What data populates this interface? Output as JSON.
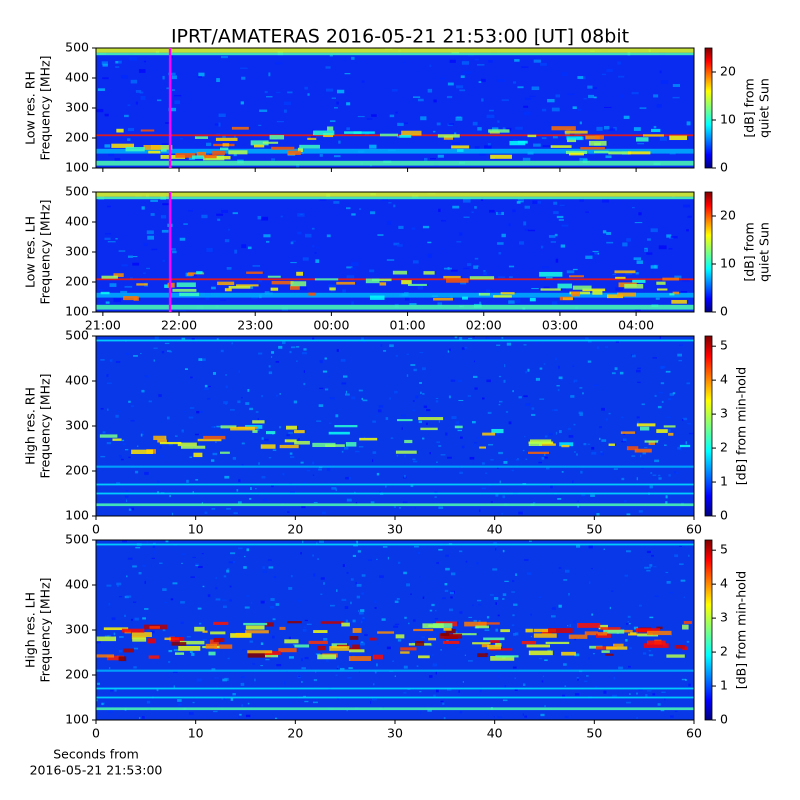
{
  "chart_data": [
    {
      "type": "heatmap",
      "title": "IPRT/AMATERAS 2016-05-21 21:53:00 [UT]   08bit",
      "ylabel": [
        "Low res. RH",
        "Frequency [MHz]"
      ],
      "ylim": [
        100,
        500
      ],
      "yticks": [
        100,
        200,
        300,
        400,
        500
      ],
      "xlim": [
        20.91,
        28.76
      ],
      "xticks": [
        21,
        22,
        23,
        24,
        25,
        26,
        27,
        28
      ],
      "marker_x": 21.883,
      "marker_color": "#ff00ff",
      "colorbar": {
        "label": [
          "[dB] from",
          "quiet Sun"
        ],
        "lim": [
          0,
          25
        ],
        "ticks": [
          0,
          10,
          20
        ]
      }
    },
    {
      "type": "heatmap",
      "ylabel": [
        "Low res. LH",
        "Frequency [MHz]"
      ],
      "ylim": [
        100,
        500
      ],
      "yticks": [
        100,
        200,
        300,
        400,
        500
      ],
      "xlim": [
        20.91,
        28.76
      ],
      "xticks": [
        {
          "value": 21,
          "label": "21:00"
        },
        {
          "value": 22,
          "label": "22:00"
        },
        {
          "value": 23,
          "label": "23:00"
        },
        {
          "value": 24,
          "label": "00:00"
        },
        {
          "value": 25,
          "label": "01:00"
        },
        {
          "value": 26,
          "label": "02:00"
        },
        {
          "value": 27,
          "label": "03:00"
        },
        {
          "value": 28,
          "label": "04:00"
        }
      ],
      "marker_x": 21.883,
      "marker_color": "#ff00ff",
      "colorbar": {
        "label": [
          "[dB] from",
          "quiet Sun"
        ],
        "lim": [
          0,
          25
        ],
        "ticks": [
          0,
          10,
          20
        ]
      }
    },
    {
      "type": "heatmap",
      "ylabel": [
        "High res. RH",
        "Frequency [MHz]"
      ],
      "ylim": [
        100,
        500
      ],
      "yticks": [
        100,
        200,
        300,
        400,
        500
      ],
      "xlim": [
        0,
        60
      ],
      "xticks": [
        0,
        10,
        20,
        30,
        40,
        50,
        60
      ],
      "colorbar": {
        "label": [
          "[dB] from min-hold"
        ],
        "lim": [
          0,
          5.3
        ],
        "ticks": [
          0,
          1,
          2,
          3,
          4,
          5
        ]
      }
    },
    {
      "type": "heatmap",
      "ylabel": [
        "High res. LH",
        "Frequency [MHz]"
      ],
      "ylim": [
        100,
        500
      ],
      "yticks": [
        100,
        200,
        300,
        400,
        500
      ],
      "xlim": [
        0,
        60
      ],
      "xticks": [
        0,
        10,
        20,
        30,
        40,
        50,
        60
      ],
      "xlabel": [
        "Seconds from",
        "2016-05-21 21:53:00"
      ],
      "colorbar": {
        "label": [
          "[dB] from min-hold"
        ],
        "lim": [
          0,
          5.3
        ],
        "ticks": [
          0,
          1,
          2,
          3,
          4,
          5
        ]
      }
    }
  ]
}
